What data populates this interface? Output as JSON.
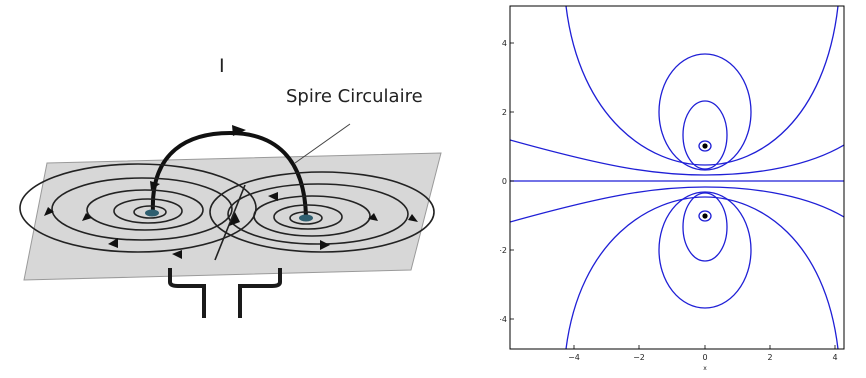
{
  "left_figure": {
    "current_label": "I",
    "loop_label": "Spire Circulaire"
  },
  "right_figure": {
    "x_ticks": [
      "−4",
      "−2",
      "0",
      "2",
      "4"
    ],
    "y_ticks": [
      "4",
      "2",
      "0",
      "−2",
      "−4"
    ],
    "x_axis_label": "x",
    "line_color": "#1f1fd6"
  }
}
